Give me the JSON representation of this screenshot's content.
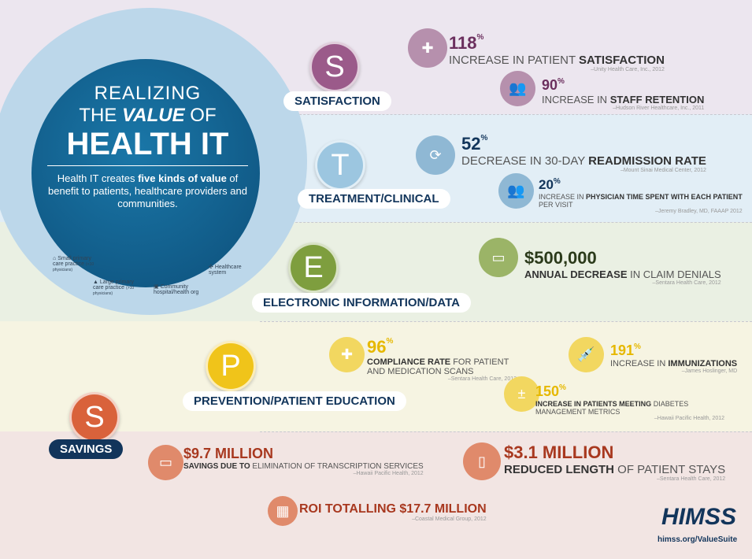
{
  "title": {
    "line1": "REALIZING",
    "line2_pre": "THE",
    "line2_em": "VALUE",
    "line2_post": "OF",
    "line3": "HEALTH IT",
    "desc_pre": "Health IT creates ",
    "desc_bold": "five kinds of value",
    "desc_post": " of benefit to patients, healthcare providers and communities."
  },
  "legend": [
    {
      "label": "Small primary care practice",
      "note": "(<10 physicians)",
      "icon": "house-icon"
    },
    {
      "label": "Large primary care practice",
      "note": "(>10 physicians)",
      "icon": "building-icon"
    },
    {
      "label": "Community hospital/health org",
      "icon": "hospital-icon"
    },
    {
      "label": "Healthcare system",
      "icon": "network-icon"
    }
  ],
  "categories": [
    {
      "letter": "S",
      "label": "SATISFACTION",
      "color": "#9b5a8a"
    },
    {
      "letter": "T",
      "label": "TREATMENT/CLINICAL",
      "color": "#9cc6e0"
    },
    {
      "letter": "E",
      "label": "ELECTRONIC INFORMATION/DATA",
      "color": "#7e9e3e"
    },
    {
      "letter": "P",
      "label": "PREVENTION/PATIENT EDUCATION",
      "color": "#f0c41a"
    },
    {
      "letter": "S",
      "label": "SAVINGS",
      "color": "#d9623b"
    }
  ],
  "stats": {
    "s1": {
      "value": "118",
      "unit": "%",
      "pre": "INCREASE IN PATIENT ",
      "bold": "SATISFACTION",
      "source": "–Unity Health Care, Inc., 2012"
    },
    "s2": {
      "value": "90",
      "unit": "%",
      "pre": "INCREASE IN ",
      "bold": "STAFF RETENTION",
      "source": "–Hudson River Healthcare, Inc., 2011"
    },
    "t1": {
      "value": "52",
      "unit": "%",
      "pre": "DECREASE IN 30-DAY ",
      "bold": "READMISSION RATE",
      "source": "–Mount Sinai Medical Center, 2012"
    },
    "t2": {
      "value": "20",
      "unit": "%",
      "pre": "INCREASE IN ",
      "bold": "PHYSICIAN TIME SPENT WITH EACH PATIENT",
      "post": "PER VISIT",
      "source": "–Jeremy Bradley, MD, FAAAP 2012"
    },
    "e1": {
      "value": "$500,000",
      "bold": "ANNUAL DECREASE",
      "post": " IN CLAIM DENIALS",
      "source": "–Sentara Health Care, 2012"
    },
    "p1": {
      "value": "96",
      "unit": "%",
      "bold": "COMPLIANCE RATE",
      "post": " FOR PATIENT AND MEDICATION SCANS",
      "source": "–Sentara Health Care, 2012"
    },
    "p2": {
      "value": "191",
      "unit": "%",
      "pre": "INCREASE IN ",
      "bold": "IMMUNIZATIONS",
      "source": "–James Hoslinger, MD"
    },
    "p3": {
      "value": "150",
      "unit": "%",
      "bold": "INCREASE IN PATIENTS MEETING",
      "post": " DIABETES MANAGEMENT METRICS",
      "source": "–Hawaii Pacific Health, 2012"
    },
    "v1": {
      "value": "$9.7 MILLION",
      "bold": "SAVINGS DUE TO",
      "post": " ELIMINATION OF TRANSCRIPTION SERVICES",
      "source": "–Hawaii Pacific Health, 2012"
    },
    "v2": {
      "value": "$3.1 MILLION",
      "bold": "REDUCED LENGTH",
      "post": " OF PATIENT STAYS",
      "source": "–Sentara Health Care, 2012"
    },
    "v3": {
      "value": "ROI TOTALLING $17.7 MILLION",
      "source": "–Coastal Medical Group, 2012"
    }
  },
  "brand": {
    "logo": "HIMSS",
    "url": "himss.org/ValueSuite"
  }
}
